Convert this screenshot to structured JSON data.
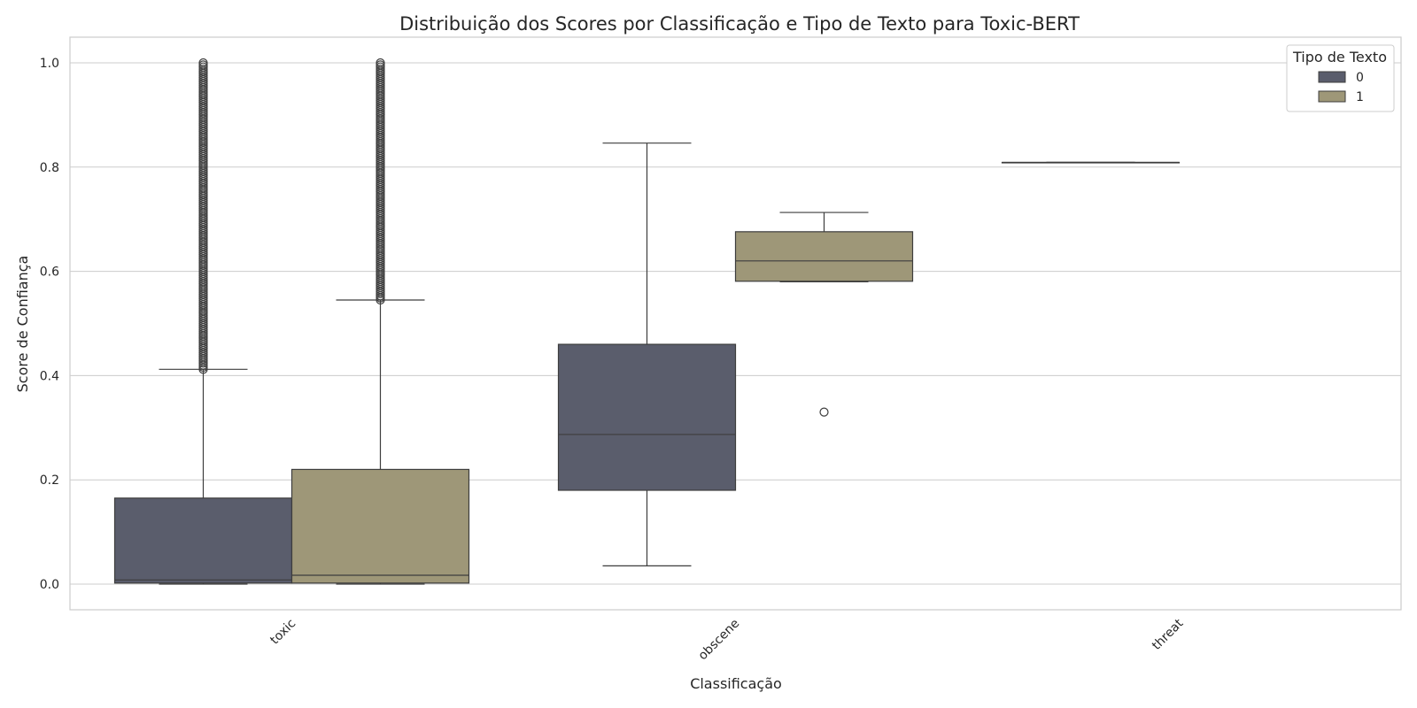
{
  "chart_data": {
    "type": "boxplot",
    "title": "Distribuição dos Scores por Classificação e Tipo de Texto para Toxic-BERT",
    "xlabel": "Classificação",
    "ylabel": "Score de Confiança",
    "ylim": [
      -0.05,
      1.05
    ],
    "yticks": [
      "0.0",
      "0.2",
      "0.4",
      "0.6",
      "0.8",
      "1.0"
    ],
    "categories": [
      "toxic",
      "obscene",
      "threat"
    ],
    "grid": true,
    "legend": {
      "title": "Tipo de Texto",
      "position": "top-right"
    },
    "series": [
      {
        "name": "0",
        "color": "#5a5d6c",
        "boxes": [
          {
            "category": "toxic",
            "whisker_low": 0.0,
            "q1": 0.002,
            "median": 0.008,
            "q3": 0.165,
            "whisker_high": 0.412,
            "outliers_range": [
              0.412,
              1.0
            ]
          },
          {
            "category": "obscene",
            "whisker_low": 0.035,
            "q1": 0.18,
            "median": 0.287,
            "q3": 0.46,
            "whisker_high": 0.846,
            "outliers": []
          },
          {
            "category": "threat",
            "whisker_low": 0.809,
            "q1": 0.809,
            "median": 0.809,
            "q3": 0.809,
            "whisker_high": 0.809,
            "outliers": []
          }
        ]
      },
      {
        "name": "1",
        "color": "#9e9778",
        "boxes": [
          {
            "category": "toxic",
            "whisker_low": 0.0,
            "q1": 0.002,
            "median": 0.017,
            "q3": 0.22,
            "whisker_high": 0.545,
            "outliers_range": [
              0.545,
              1.0
            ]
          },
          {
            "category": "obscene",
            "whisker_low": 0.58,
            "q1": 0.581,
            "median": 0.62,
            "q3": 0.676,
            "whisker_high": 0.713,
            "outliers": [
              0.33
            ]
          }
        ]
      }
    ]
  }
}
